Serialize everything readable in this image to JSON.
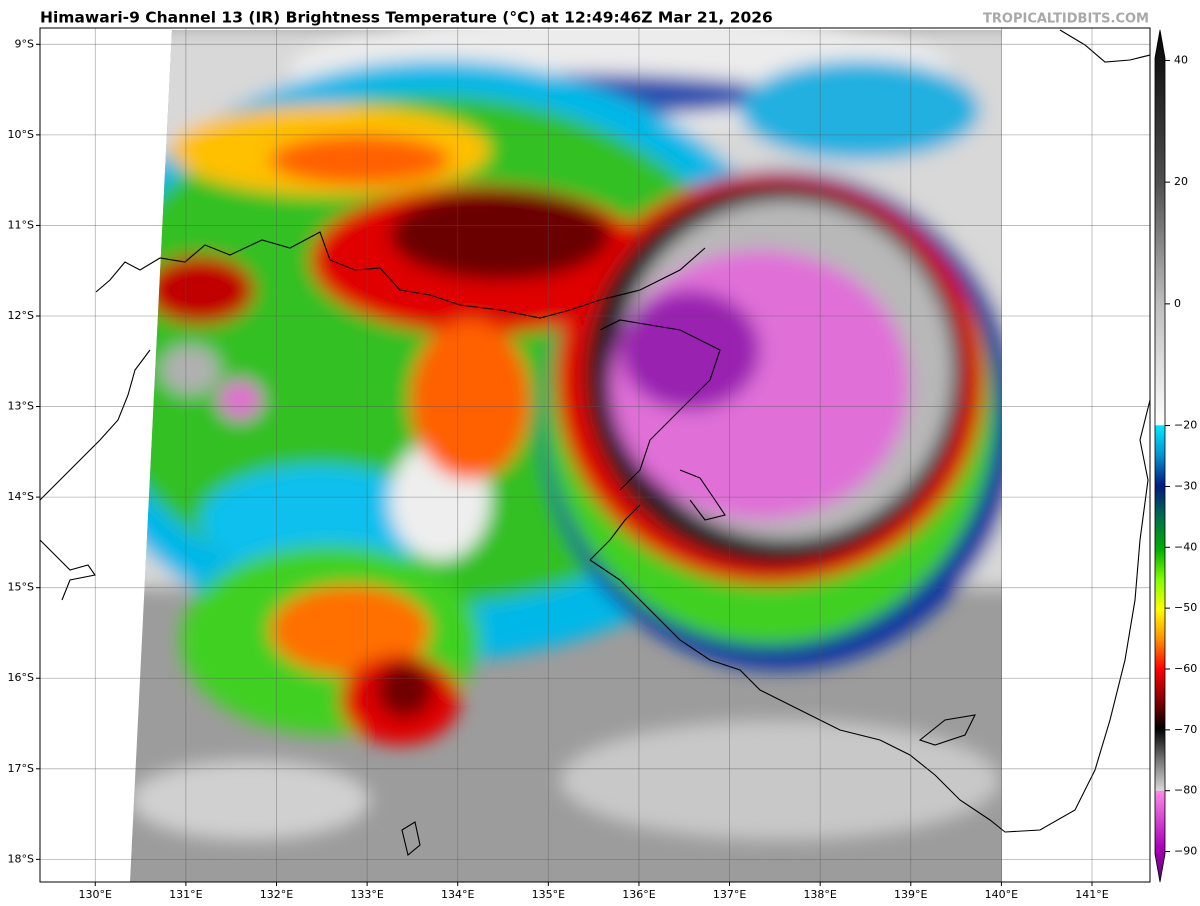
{
  "header": {
    "title": "Himawari-9 Channel 13 (IR) Brightness Temperature (°C) at 12:49:46Z Mar 21, 2026",
    "site": "TROPICALTIDBITS.COM"
  },
  "map": {
    "xlim": [
      129.39,
      141.64
    ],
    "ylim": [
      -18.25,
      -8.82
    ],
    "xticks": [
      {
        "value": 130,
        "label": "130°E"
      },
      {
        "value": 131,
        "label": "131°E"
      },
      {
        "value": 132,
        "label": "132°E"
      },
      {
        "value": 133,
        "label": "133°E"
      },
      {
        "value": 134,
        "label": "134°E"
      },
      {
        "value": 135,
        "label": "135°E"
      },
      {
        "value": 136,
        "label": "136°E"
      },
      {
        "value": 137,
        "label": "137°E"
      },
      {
        "value": 138,
        "label": "138°E"
      },
      {
        "value": 139,
        "label": "139°E"
      },
      {
        "value": 140,
        "label": "140°E"
      },
      {
        "value": 141,
        "label": "141°E"
      }
    ],
    "yticks": [
      {
        "value": -9,
        "label": "9°S"
      },
      {
        "value": -10,
        "label": "10°S"
      },
      {
        "value": -11,
        "label": "11°S"
      },
      {
        "value": -12,
        "label": "12°S"
      },
      {
        "value": -13,
        "label": "13°S"
      },
      {
        "value": -14,
        "label": "14°S"
      },
      {
        "value": -15,
        "label": "15°S"
      },
      {
        "value": -16,
        "label": "16°S"
      },
      {
        "value": -17,
        "label": "17°S"
      },
      {
        "value": -18,
        "label": "18°S"
      }
    ],
    "grid": true
  },
  "colorbar": {
    "clim": [
      -95,
      45
    ],
    "ticks": [
      40,
      20,
      0,
      {
        "value": -20,
        "label": "−20"
      },
      {
        "value": -30,
        "label": "−30"
      },
      {
        "value": -40,
        "label": "−40"
      },
      {
        "value": -50,
        "label": "−50"
      },
      {
        "value": -60,
        "label": "−60"
      },
      {
        "value": -70,
        "label": "−70"
      },
      {
        "value": -80,
        "label": "−80"
      },
      {
        "value": -90,
        "label": "−90"
      }
    ]
  }
}
